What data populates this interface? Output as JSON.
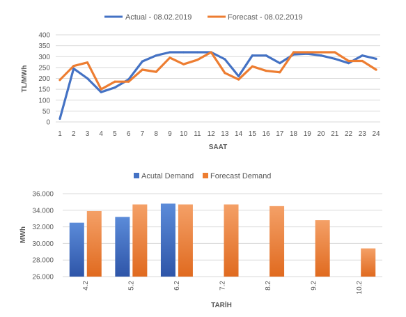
{
  "chart_data": [
    {
      "type": "line",
      "title": "",
      "xlabel": "SAAT",
      "ylabel": "TL/MWh",
      "ylim": [
        0,
        400
      ],
      "yticks": [
        "0",
        "50",
        "100",
        "150",
        "200",
        "250",
        "300",
        "350",
        "400"
      ],
      "categories": [
        "1",
        "2",
        "3",
        "4",
        "5",
        "6",
        "7",
        "8",
        "9",
        "10",
        "11",
        "12",
        "13",
        "14",
        "15",
        "16",
        "17",
        "18",
        "19",
        "20",
        "21",
        "22",
        "23",
        "24"
      ],
      "grid": true,
      "legend": "top",
      "series": [
        {
          "name": "Actual - 08.02.2019",
          "color": "#4472C4",
          "values": [
            15,
            245,
            200,
            137,
            158,
            195,
            278,
            305,
            320,
            320,
            320,
            320,
            288,
            210,
            305,
            305,
            270,
            310,
            313,
            305,
            290,
            270,
            305,
            290
          ]
        },
        {
          "name": "Forecast - 08.02.2019",
          "color": "#ED7D31",
          "values": [
            193,
            257,
            273,
            150,
            185,
            185,
            240,
            230,
            295,
            265,
            285,
            320,
            225,
            195,
            255,
            235,
            228,
            320,
            320,
            320,
            320,
            280,
            280,
            240
          ]
        }
      ]
    },
    {
      "type": "bar",
      "title": "",
      "xlabel": "TARİH",
      "ylabel": "MWh",
      "ylim": [
        26000,
        36000
      ],
      "yticks": [
        "26.000",
        "28.000",
        "30.000",
        "32.000",
        "34.000",
        "36.000"
      ],
      "categories": [
        "4.2",
        "5.2",
        "6.2",
        "7.2",
        "8.2",
        "9.2",
        "10.2"
      ],
      "grid": true,
      "legend": "top",
      "series": [
        {
          "name": "Acutal Demand",
          "color": "#4472C4",
          "values": [
            32500,
            33200,
            34800,
            null,
            null,
            null,
            null
          ]
        },
        {
          "name": "Forecast Demand",
          "color": "#ED7D31",
          "values": [
            33900,
            34700,
            34700,
            34700,
            34500,
            32800,
            29400
          ]
        }
      ]
    }
  ]
}
